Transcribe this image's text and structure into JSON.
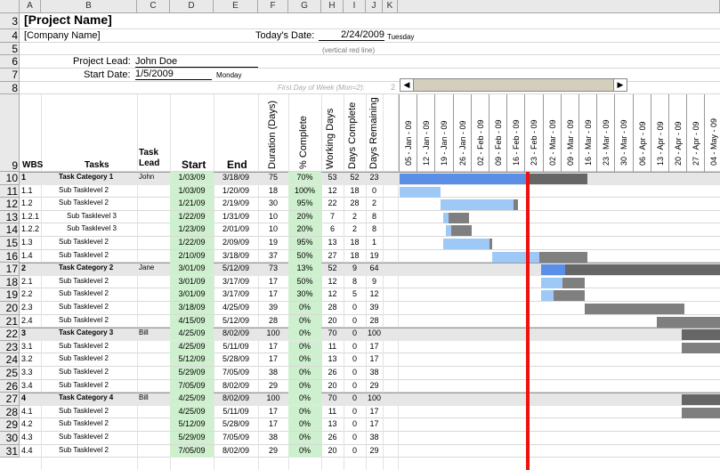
{
  "column_headers": [
    "A",
    "B",
    "C",
    "D",
    "E",
    "F",
    "G",
    "H",
    "I",
    "J",
    "K"
  ],
  "row_numbers": [
    "3",
    "4",
    "5",
    "6",
    "7",
    "8",
    "9",
    "10",
    "11",
    "12",
    "13",
    "14",
    "15",
    "16",
    "17",
    "18",
    "19",
    "20",
    "21",
    "22",
    "23",
    "24",
    "25",
    "26",
    "27",
    "28",
    "29",
    "30",
    "31"
  ],
  "project": {
    "name": "[Project Name]",
    "company": "[Company Name]",
    "todays_date_label": "Today's Date:",
    "todays_date": "2/24/2009",
    "todays_day": "Tuesday",
    "vertical_note": "(vertical red line)",
    "lead_label": "Project Lead:",
    "lead": "John Doe",
    "start_label": "Start Date:",
    "start_date": "1/5/2009",
    "start_day": "Monday",
    "first_day_label": "First Day of Week (Mon=2):",
    "first_day_value": "2"
  },
  "table_headers": {
    "wbs": "WBS",
    "tasks": "Tasks",
    "lead": "Task Lead",
    "start": "Start",
    "end": "End",
    "duration": "Duration (Days)",
    "pct": "% Complete",
    "working": "Working Days",
    "done": "Days Complete",
    "remaining": "Days Remaining"
  },
  "weeks": [
    "05 - Jan - 09",
    "12 - Jan - 09",
    "19 - Jan - 09",
    "26 - Jan - 09",
    "02 - Feb - 09",
    "09 - Feb - 09",
    "16 - Feb - 09",
    "23 - Feb - 09",
    "02 - Mar - 09",
    "09 - Mar - 09",
    "16 - Mar - 09",
    "23 - Mar - 09",
    "30 - Mar - 09",
    "06 - Apr - 09",
    "13 - Apr - 09",
    "20 - Apr - 09",
    "27 - Apr - 09",
    "04 - May - 09"
  ],
  "tasks": [
    {
      "wbs": "1",
      "task": "Task Category 1",
      "lead": "John",
      "start": "1/03/09",
      "end": "3/18/09",
      "dur": "75",
      "pct": "70%",
      "work": "53",
      "done": "52",
      "rem": "23",
      "cat": true
    },
    {
      "wbs": "1.1",
      "task": "Sub Tasklevel 2",
      "lead": "",
      "start": "1/03/09",
      "end": "1/20/09",
      "dur": "18",
      "pct": "100%",
      "work": "12",
      "done": "18",
      "rem": "0"
    },
    {
      "wbs": "1.2",
      "task": "Sub Tasklevel 2",
      "lead": "",
      "start": "1/21/09",
      "end": "2/19/09",
      "dur": "30",
      "pct": "95%",
      "work": "22",
      "done": "28",
      "rem": "2"
    },
    {
      "wbs": "1.2.1",
      "task": "Sub Tasklevel 3",
      "lead": "",
      "start": "1/22/09",
      "end": "1/31/09",
      "dur": "10",
      "pct": "20%",
      "work": "7",
      "done": "2",
      "rem": "8",
      "l3": true
    },
    {
      "wbs": "1.2.2",
      "task": "Sub Tasklevel 3",
      "lead": "",
      "start": "1/23/09",
      "end": "2/01/09",
      "dur": "10",
      "pct": "20%",
      "work": "6",
      "done": "2",
      "rem": "8",
      "l3": true
    },
    {
      "wbs": "1.3",
      "task": "Sub Tasklevel 2",
      "lead": "",
      "start": "1/22/09",
      "end": "2/09/09",
      "dur": "19",
      "pct": "95%",
      "work": "13",
      "done": "18",
      "rem": "1"
    },
    {
      "wbs": "1.4",
      "task": "Sub Tasklevel 2",
      "lead": "",
      "start": "2/10/09",
      "end": "3/18/09",
      "dur": "37",
      "pct": "50%",
      "work": "27",
      "done": "18",
      "rem": "19"
    },
    {
      "wbs": "2",
      "task": "Task Category 2",
      "lead": "Jane",
      "start": "3/01/09",
      "end": "5/12/09",
      "dur": "73",
      "pct": "13%",
      "work": "52",
      "done": "9",
      "rem": "64",
      "cat": true
    },
    {
      "wbs": "2.1",
      "task": "Sub Tasklevel 2",
      "lead": "",
      "start": "3/01/09",
      "end": "3/17/09",
      "dur": "17",
      "pct": "50%",
      "work": "12",
      "done": "8",
      "rem": "9"
    },
    {
      "wbs": "2.2",
      "task": "Sub Tasklevel 2",
      "lead": "",
      "start": "3/01/09",
      "end": "3/17/09",
      "dur": "17",
      "pct": "30%",
      "work": "12",
      "done": "5",
      "rem": "12"
    },
    {
      "wbs": "2.3",
      "task": "Sub Tasklevel 2",
      "lead": "",
      "start": "3/18/09",
      "end": "4/25/09",
      "dur": "39",
      "pct": "0%",
      "work": "28",
      "done": "0",
      "rem": "39"
    },
    {
      "wbs": "2.4",
      "task": "Sub Tasklevel 2",
      "lead": "",
      "start": "4/15/09",
      "end": "5/12/09",
      "dur": "28",
      "pct": "0%",
      "work": "20",
      "done": "0",
      "rem": "28"
    },
    {
      "wbs": "3",
      "task": "Task Category 3",
      "lead": "Bill",
      "start": "4/25/09",
      "end": "8/02/09",
      "dur": "100",
      "pct": "0%",
      "work": "70",
      "done": "0",
      "rem": "100",
      "cat": true
    },
    {
      "wbs": "3.1",
      "task": "Sub Tasklevel 2",
      "lead": "",
      "start": "4/25/09",
      "end": "5/11/09",
      "dur": "17",
      "pct": "0%",
      "work": "11",
      "done": "0",
      "rem": "17"
    },
    {
      "wbs": "3.2",
      "task": "Sub Tasklevel 2",
      "lead": "",
      "start": "5/12/09",
      "end": "5/28/09",
      "dur": "17",
      "pct": "0%",
      "work": "13",
      "done": "0",
      "rem": "17"
    },
    {
      "wbs": "3.3",
      "task": "Sub Tasklevel 2",
      "lead": "",
      "start": "5/29/09",
      "end": "7/05/09",
      "dur": "38",
      "pct": "0%",
      "work": "26",
      "done": "0",
      "rem": "38"
    },
    {
      "wbs": "3.4",
      "task": "Sub Tasklevel 2",
      "lead": "",
      "start": "7/05/09",
      "end": "8/02/09",
      "dur": "29",
      "pct": "0%",
      "work": "20",
      "done": "0",
      "rem": "29"
    },
    {
      "wbs": "4",
      "task": "Task Category 4",
      "lead": "Bill",
      "start": "4/25/09",
      "end": "8/02/09",
      "dur": "100",
      "pct": "0%",
      "work": "70",
      "done": "0",
      "rem": "100",
      "cat": true
    },
    {
      "wbs": "4.1",
      "task": "Sub Tasklevel 2",
      "lead": "",
      "start": "4/25/09",
      "end": "5/11/09",
      "dur": "17",
      "pct": "0%",
      "work": "11",
      "done": "0",
      "rem": "17"
    },
    {
      "wbs": "4.2",
      "task": "Sub Tasklevel 2",
      "lead": "",
      "start": "5/12/09",
      "end": "5/28/09",
      "dur": "17",
      "pct": "0%",
      "work": "13",
      "done": "0",
      "rem": "17"
    },
    {
      "wbs": "4.3",
      "task": "Sub Tasklevel 2",
      "lead": "",
      "start": "5/29/09",
      "end": "7/05/09",
      "dur": "38",
      "pct": "0%",
      "work": "26",
      "done": "0",
      "rem": "38"
    },
    {
      "wbs": "4.4",
      "task": "Sub Tasklevel 2",
      "lead": "",
      "start": "7/05/09",
      "end": "8/02/09",
      "dur": "29",
      "pct": "0%",
      "work": "20",
      "done": "0",
      "rem": "29"
    }
  ],
  "colors": {
    "done_cat": "#5b8ee6",
    "done_sub": "#9ec9f7",
    "remaining": "#7f7f7f",
    "today": "#ee1111",
    "start_bg": "#cff0cf",
    "cat_row": "#e6e6e6",
    "header": "#e9e9e9"
  }
}
